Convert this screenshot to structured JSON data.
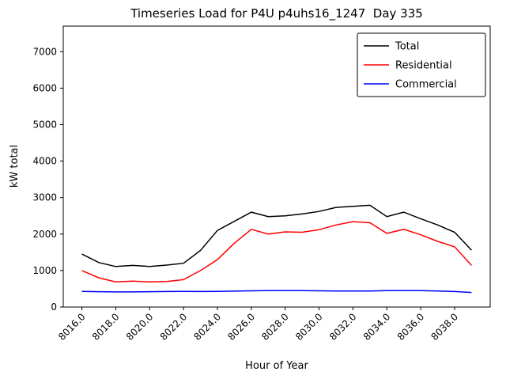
{
  "chart_data": {
    "type": "line",
    "title": "Timeseries Load for P4U p4uhs16_1247  Day 335",
    "xlabel": "Hour of Year",
    "ylabel": "kW total",
    "grid": false,
    "legend_position": "upper right",
    "xlim": [
      8014.9,
      8040.1
    ],
    "ylim": [
      0,
      7700
    ],
    "x_ticks": [
      8016,
      8018,
      8020,
      8022,
      8024,
      8026,
      8028,
      8030,
      8032,
      8034,
      8036,
      8038
    ],
    "x_tick_labels": [
      "8016.0",
      "8018.0",
      "8020.0",
      "8022.0",
      "8024.0",
      "8026.0",
      "8028.0",
      "8030.0",
      "8032.0",
      "8034.0",
      "8036.0",
      "8038.0"
    ],
    "y_ticks": [
      0,
      1000,
      2000,
      3000,
      4000,
      5000,
      6000,
      7000
    ],
    "y_tick_labels": [
      "0",
      "1000",
      "2000",
      "3000",
      "4000",
      "5000",
      "6000",
      "7000"
    ],
    "x": [
      8016,
      8017,
      8018,
      8019,
      8020,
      8021,
      8022,
      8023,
      8024,
      8025,
      8026,
      8027,
      8028,
      8029,
      8030,
      8031,
      8032,
      8033,
      8034,
      8035,
      8036,
      8037,
      8038,
      8039
    ],
    "series": [
      {
        "name": "Total",
        "color": "#000000",
        "values": [
          1450,
          1220,
          1110,
          1140,
          1110,
          1150,
          1200,
          1550,
          2100,
          2350,
          2600,
          2480,
          2500,
          2550,
          2620,
          2730,
          2760,
          2790,
          2480,
          2600,
          2420,
          2250,
          2050,
          1560
        ]
      },
      {
        "name": "Residential",
        "color": "#ff0000",
        "values": [
          1000,
          800,
          690,
          710,
          690,
          700,
          750,
          1000,
          1300,
          1750,
          2130,
          2000,
          2060,
          2050,
          2120,
          2250,
          2340,
          2310,
          2020,
          2130,
          1980,
          1800,
          1650,
          1140
        ]
      },
      {
        "name": "Commercial",
        "color": "#0000ff",
        "values": [
          430,
          420,
          415,
          415,
          420,
          425,
          430,
          425,
          430,
          435,
          445,
          450,
          450,
          448,
          445,
          440,
          438,
          440,
          448,
          450,
          448,
          440,
          425,
          400
        ]
      }
    ]
  }
}
